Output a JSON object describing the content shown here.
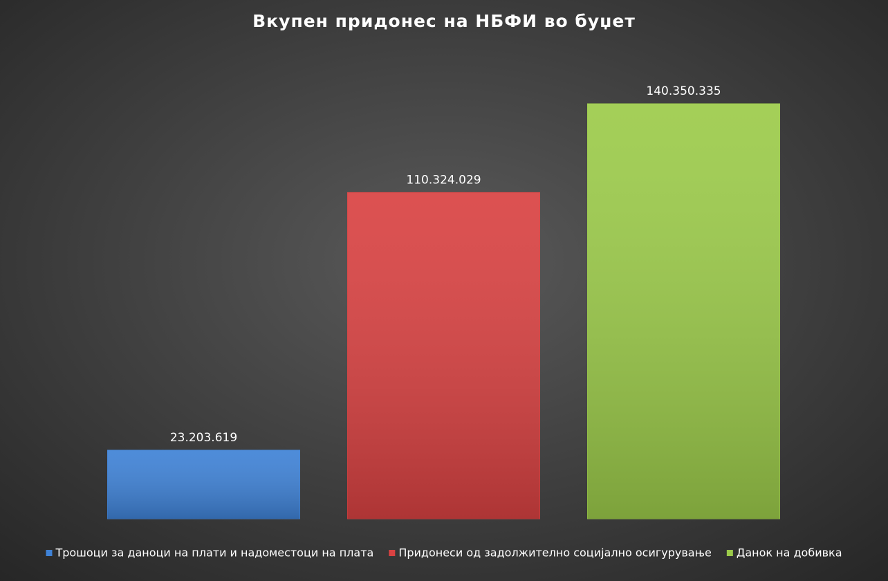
{
  "chart_data": {
    "type": "bar",
    "title": "Вкупен придонес на НБФИ во буџет",
    "series": [
      {
        "name": "Трошоци за даноци на плати и надоместоци на плата",
        "color": "#3f82d6",
        "values": [
          23203619
        ],
        "value_labels": [
          "23.203.619"
        ]
      },
      {
        "name": "Придонеси од задолжително социјално осигурување",
        "color": "#d94242",
        "values": [
          110324029
        ],
        "value_labels": [
          "110.324.029"
        ]
      },
      {
        "name": "Данок на добивка",
        "color": "#9ccb4a",
        "values": [
          140350335
        ],
        "value_labels": [
          "140.350.335"
        ]
      }
    ],
    "legend": "bottom"
  }
}
